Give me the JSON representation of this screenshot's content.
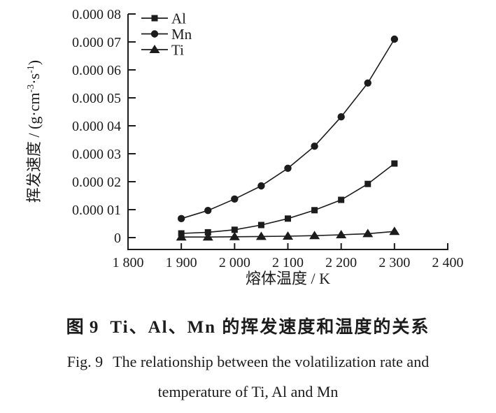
{
  "figure": {
    "background": "#ffffff",
    "ink_color": "#1c1c1c"
  },
  "caption": {
    "zh_label": "图 9",
    "zh_text": "Ti、Al、Mn 的挥发速度和温度的关系",
    "en_label": "Fig. 9",
    "en_line1": "The relationship between the volatilization rate and",
    "en_line2": "temperature of Ti, Al and Mn"
  },
  "chart_data": {
    "type": "line",
    "x": [
      1900,
      1950,
      2000,
      2050,
      2100,
      2150,
      2200,
      2250,
      2300
    ],
    "series": [
      {
        "name": "Al",
        "marker": "square",
        "color": "#1c1c1c",
        "values": [
          1.5e-06,
          1.9e-06,
          2.8e-06,
          4.5e-06,
          6.8e-06,
          9.8e-06,
          1.35e-05,
          1.92e-05,
          2.65e-05
        ]
      },
      {
        "name": "Mn",
        "marker": "circle",
        "color": "#1c1c1c",
        "values": [
          6.8e-06,
          9.7e-06,
          1.38e-05,
          1.85e-05,
          2.48e-05,
          3.27e-05,
          4.32e-05,
          5.53e-05,
          7.1e-05
        ]
      },
      {
        "name": "Ti",
        "marker": "triangle",
        "color": "#1c1c1c",
        "values": [
          2e-07,
          2e-07,
          3e-07,
          4e-07,
          5e-07,
          7e-07,
          1e-06,
          1.4e-06,
          2.2e-06
        ]
      }
    ],
    "xlabel": "熔体温度 / K",
    "ylabel_parts": [
      {
        "t": "挥发速度 / (g·cm"
      },
      {
        "t": "-3",
        "sup": true
      },
      {
        "t": "·s"
      },
      {
        "t": "-1",
        "sup": true
      },
      {
        "t": ")"
      }
    ],
    "xlim": [
      1800,
      2400
    ],
    "ylim": [
      0,
      8e-05
    ],
    "xticks": {
      "values": [
        1800,
        1900,
        2000,
        2100,
        2200,
        2300,
        2400
      ],
      "labels": [
        "1 800",
        "1 900",
        "2 000",
        "2 100",
        "2 200",
        "2 300",
        "2 400"
      ]
    },
    "yticks": {
      "values": [
        0,
        1e-05,
        2e-05,
        3e-05,
        4e-05,
        5e-05,
        6e-05,
        7e-05,
        8e-05
      ],
      "labels": [
        "0",
        "0.000 01",
        "0.000 02",
        "0.000 03",
        "0.000 04",
        "0.000 05",
        "0.000 06",
        "0.000 07",
        "0.000 08"
      ]
    },
    "legend": {
      "position": "top-left-inside",
      "items": [
        "Al",
        "Mn",
        "Ti"
      ]
    },
    "grid": false
  }
}
